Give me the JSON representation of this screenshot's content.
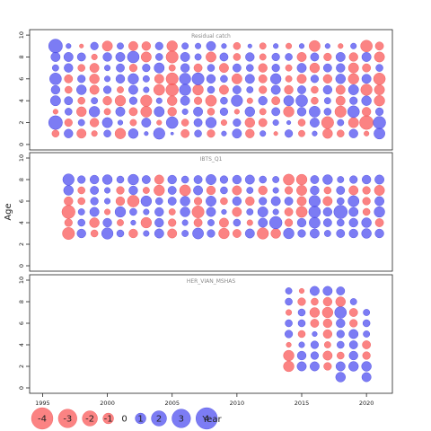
{
  "chart_data": {
    "type": "scatter",
    "subtype": "bubble-residual",
    "xlabel": "Year",
    "ylabel": "Age",
    "xlim": [
      1994,
      2022
    ],
    "x_ticks": [
      1995,
      2000,
      2005,
      2010,
      2015,
      2020
    ],
    "y_ticks": [
      0,
      2,
      4,
      6,
      8,
      10
    ],
    "ylim": [
      -0.5,
      10.5
    ],
    "legend": {
      "placement": "bottom-left",
      "values": [
        -4,
        -3,
        -2,
        -1,
        0,
        1,
        2,
        3,
        4
      ],
      "labels": [
        "-4",
        "-3",
        "-2",
        "-1",
        "0",
        "1",
        "2",
        "3",
        "4"
      ]
    },
    "colors": {
      "positive": "#5050f0",
      "negative": "#fa5a5a"
    },
    "panels": [
      {
        "name": "Residual catch",
        "years": [
          1996,
          2021
        ],
        "ages": [
          1,
          9
        ],
        "residuals": [
          [
            -0.6,
            0.9,
            -1.0,
            -0.4,
            0.6,
            -1.3,
            1.1,
            0.2,
            1.5,
            0.1,
            -0.8,
            0.6,
            -0.7,
            0.3,
            1.0,
            -0.9,
            0.4,
            -0.2,
            0.7,
            -0.5,
            0.3,
            -1.1,
            -0.6,
            0.9,
            -0.3,
            1.4
          ],
          [
            2.2,
            -0.7,
            0.5,
            -0.9,
            1.2,
            0.3,
            -0.5,
            1.0,
            -0.3,
            1.6,
            -0.6,
            0.8,
            1.3,
            -0.4,
            0.7,
            -1.1,
            -0.8,
            0.4,
            0.2,
            -0.6,
            1.0,
            -1.7,
            0.5,
            -1.2,
            -2.2,
            1.8
          ],
          [
            -0.3,
            0.6,
            -1.1,
            1.3,
            -0.5,
            1.0,
            -0.8,
            -1.4,
            1.2,
            -0.9,
            0.4,
            1.0,
            -0.6,
            0.7,
            -0.3,
            1.1,
            -0.5,
            0.8,
            -1.3,
            0.9,
            1.4,
            0.6,
            -1.5,
            1.6,
            -0.9,
            0.7
          ],
          [
            1.2,
            0.8,
            -0.6,
            0.5,
            -0.9,
            -1.3,
            0.7,
            -1.5,
            0.4,
            -1.1,
            1.0,
            -0.7,
            -1.4,
            0.6,
            1.5,
            -0.4,
            0.9,
            -0.8,
            1.2,
            1.6,
            -0.6,
            0.5,
            -1.0,
            0.7,
            1.1,
            -1.3
          ],
          [
            0.9,
            -0.6,
            1.1,
            -1.0,
            0.7,
            -0.5,
            1.0,
            0.4,
            -1.4,
            -1.8,
            1.5,
            -1.3,
            0.6,
            -1.0,
            0.8,
            0.5,
            -0.7,
            1.0,
            -0.9,
            0.8,
            -0.6,
            0.9,
            -1.0,
            1.2,
            -1.5,
            -1.2
          ],
          [
            1.6,
            -0.8,
            0.7,
            -1.1,
            0.4,
            0.9,
            1.3,
            0.5,
            -1.0,
            -1.7,
            1.5,
            1.7,
            0.9,
            0.6,
            -1.2,
            1.0,
            -0.8,
            1.3,
            -0.5,
            -1.0,
            0.7,
            -0.9,
            1.1,
            -1.3,
            1.0,
            -1.6
          ],
          [
            0.5,
            0.9,
            -0.6,
            -1.0,
            0.4,
            0.8,
            -0.7,
            0.7,
            1.2,
            -0.5,
            0.9,
            -0.8,
            0.6,
            -1.0,
            0.8,
            0.6,
            -0.9,
            0.7,
            -0.5,
            1.0,
            -1.1,
            0.8,
            0.9,
            -1.2,
            -0.8,
            0.6
          ],
          [
            1.0,
            1.0,
            0.8,
            -0.4,
            0.9,
            1.0,
            1.6,
            -1.2,
            0.6,
            -1.7,
            1.0,
            0.5,
            -1.2,
            0.8,
            -0.6,
            0.9,
            -0.5,
            0.7,
            0.6,
            -1.0,
            0.8,
            -0.7,
            1.0,
            -0.9,
            1.0,
            -1.2
          ],
          [
            2.2,
            0.3,
            -0.2,
            0.7,
            -1.2,
            0.5,
            -1.0,
            -0.9,
            0.7,
            -1.3,
            0.5,
            0.4,
            1.0,
            0.3,
            -0.6,
            0.2,
            -0.5,
            0.3,
            -0.4,
            0.3,
            -1.4,
            0.3,
            -0.3,
            0.4,
            -1.6,
            -0.8
          ]
        ]
      },
      {
        "name": "IBTS_Q1",
        "years": [
          1997,
          2021
        ],
        "ages": [
          1,
          9
        ],
        "residuals": [
          [
            -1.7,
            0.9,
            -0.6,
            1.5,
            0.6,
            -0.9,
            0.4,
            1.0,
            -1.0,
            0.5,
            1.4,
            0.7,
            -1.3,
            -0.8,
            1.0,
            -1.5,
            -1.1,
            1.3,
            0.7,
            1.0,
            0.5,
            0.8,
            0.9,
            1.1,
            0.9
          ],
          [
            -0.7,
            0.6,
            -1.1,
            0.9,
            -0.5,
            0.3,
            -1.3,
            0.9,
            -0.7,
            0.4,
            -0.8,
            0.5,
            -1.0,
            0.6,
            -0.4,
            1.0,
            1.8,
            -0.7,
            0.9,
            1.4,
            0.8,
            0.6,
            0.9,
            1.1,
            -0.8
          ],
          [
            -2.0,
            0.5,
            1.0,
            -0.4,
            1.3,
            0.6,
            0.4,
            0.9,
            -0.5,
            1.1,
            -1.7,
            1.0,
            0.3,
            -1.0,
            0.5,
            1.2,
            0.4,
            -0.8,
            -1.4,
            1.6,
            0.9,
            2.1,
            1.0,
            -0.6,
            1.3
          ],
          [
            -0.9,
            -0.6,
            0.7,
            0.4,
            -0.9,
            -1.6,
            1.3,
            0.6,
            0.8,
            1.1,
            -0.7,
            1.2,
            -0.6,
            0.9,
            -0.9,
            0.7,
            1.0,
            0.8,
            -1.0,
            1.5,
            -1.0,
            0.6,
            1.4,
            -0.7,
            1.0
          ],
          [
            1.1,
            -0.6,
            0.8,
            0.4,
            -0.7,
            0.9,
            -0.5,
            -1.3,
            0.8,
            -1.4,
            1.0,
            -0.9,
            0.6,
            -1.0,
            0.5,
            -0.9,
            0.4,
            -0.7,
            -1.2,
            0.9,
            -0.6,
            0.8,
            -1.0,
            -0.7,
            -1.2
          ],
          [
            1.5,
            0.7,
            0.9,
            1.1,
            0.6,
            1.3,
            0.8,
            -1.0,
            0.9,
            0.6,
            0.8,
            1.2,
            0.7,
            0.9,
            1.0,
            0.6,
            0.5,
            -1.4,
            -1.3,
            0.8,
            1.1,
            0.5,
            0.7,
            0.9,
            1.0
          ]
        ],
        "age_offset": 2
      },
      {
        "name": "HER_VIAN_MSHAS",
        "years": [
          2014,
          2020
        ],
        "ages": [
          1,
          9
        ],
        "residuals": [
          [
            0,
            0,
            0,
            0,
            1.1,
            0,
            1.0
          ],
          [
            -1.3,
            1.0,
            1.0,
            -0.7,
            1.0,
            1.1,
            1.1
          ],
          [
            -1.3,
            0.9,
            0.7,
            -1.0,
            -0.6,
            0.9,
            -0.7
          ],
          [
            -0.3,
            0.4,
            0.7,
            -0.5,
            0.6,
            0.8,
            -0.8
          ],
          [
            0.7,
            -0.6,
            0.3,
            -0.9,
            0.7,
            1.0,
            0.5
          ],
          [
            0.6,
            0.6,
            -0.8,
            -0.9,
            0.9,
            -0.7,
            0.6
          ],
          [
            -0.4,
            0.6,
            -1.1,
            -1.3,
            1.6,
            -0.8,
            0.5
          ],
          [
            0.6,
            -0.7,
            -0.6,
            -0.9,
            -1.1,
            0.5,
            0
          ],
          [
            0.5,
            -0.3,
            1.0,
            1.0,
            0.8,
            0,
            0
          ]
        ]
      }
    ]
  }
}
